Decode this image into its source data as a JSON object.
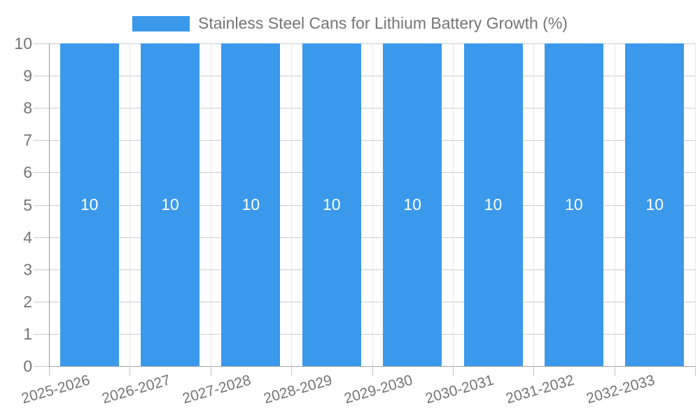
{
  "legend": {
    "label": "Stainless Steel Cans for Lithium Battery Growth (%)"
  },
  "colors": {
    "bar": "#3b99ec",
    "bar_label": "#ffffff",
    "axis_label": "#757575",
    "h_gridline": "#cccccc",
    "v_gridline": "#e6e6e6",
    "axis_line": "#999999"
  },
  "chart_data": {
    "type": "bar",
    "title": "Stainless Steel Cans for Lithium Battery Growth (%)",
    "categories": [
      "2025-2026",
      "2026-2027",
      "2027-2028",
      "2028-2029",
      "2029-2030",
      "2030-2031",
      "2031-2032",
      "2032-2033"
    ],
    "series": [
      {
        "name": "Stainless Steel Cans for Lithium Battery Growth (%)",
        "values": [
          10,
          10,
          10,
          10,
          10,
          10,
          10,
          10
        ]
      }
    ],
    "data_labels": [
      "10",
      "10",
      "10",
      "10",
      "10",
      "10",
      "10",
      "10"
    ],
    "xlabel": "",
    "ylabel": "",
    "ylim": [
      0,
      10
    ],
    "yticks": [
      0,
      1,
      2,
      3,
      4,
      5,
      6,
      7,
      8,
      9,
      10
    ],
    "grid": "on",
    "legend_position": "top",
    "x_label_rotation_deg": -16
  }
}
